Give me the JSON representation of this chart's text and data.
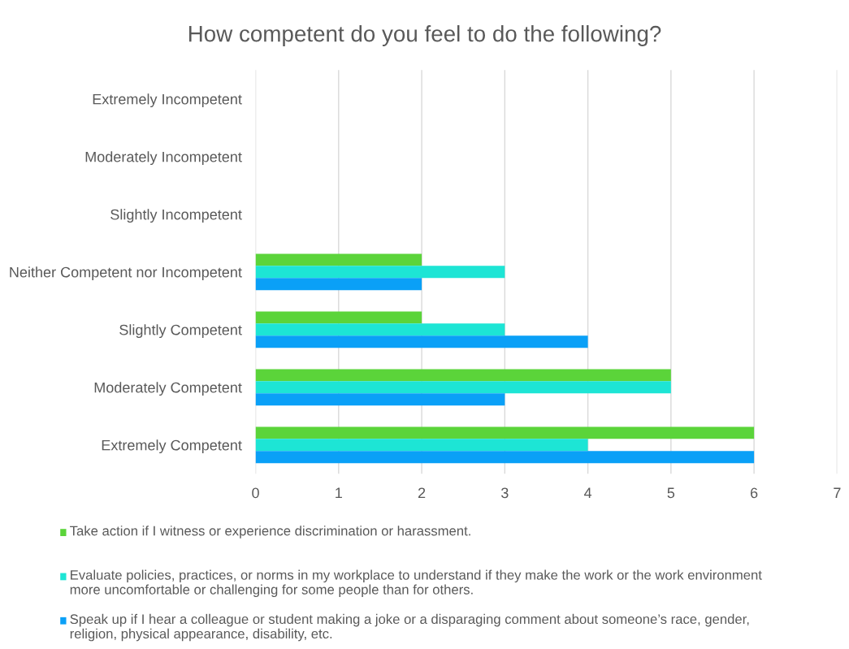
{
  "chart_data": {
    "type": "bar",
    "orientation": "horizontal",
    "title": "How competent do you feel to do the following?",
    "categories": [
      "Extremely Incompetent",
      "Moderately Incompetent",
      "Slightly Incompetent",
      "Neither Competent nor Incompetent",
      "Slightly Competent",
      "Moderately Competent",
      "Extremely Competent"
    ],
    "series": [
      {
        "name": "Take action if I witness or experience discrimination or harassment.",
        "color": "#5bd43a",
        "values": [
          0,
          0,
          0,
          2,
          2,
          5,
          6
        ]
      },
      {
        "name": "Evaluate policies, practices, or norms in my workplace to understand if they make the work or the work environment more uncomfortable or challenging for some people than for others.",
        "color": "#1de5d5",
        "values": [
          0,
          0,
          0,
          3,
          3,
          5,
          4
        ]
      },
      {
        "name": "Speak up if I hear a colleague or student making a joke or a disparaging comment about someone’s race, gender, religion, physical appearance, disability, etc.",
        "color": "#0aa0f7",
        "values": [
          0,
          0,
          0,
          2,
          4,
          3,
          6
        ]
      }
    ],
    "xlim": [
      0,
      7
    ],
    "xticks": [
      0,
      1,
      2,
      3,
      4,
      5,
      6,
      7
    ],
    "grid": "x",
    "legend": "bottom"
  }
}
